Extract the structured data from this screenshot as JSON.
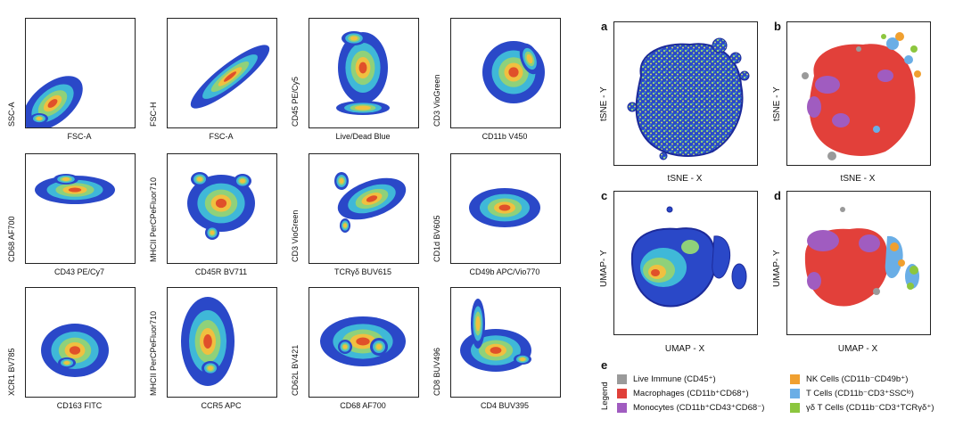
{
  "flow_panels": [
    {
      "x_label": "FSC-A",
      "y_label": "SSC-A"
    },
    {
      "x_label": "FSC-A",
      "y_label": "FSC-H"
    },
    {
      "x_label": "Live/Dead Blue",
      "y_label": "CD45 PE/Cy5"
    },
    {
      "x_label": "CD11b V450",
      "y_label": "CD3 VioGreen"
    },
    {
      "x_label": "CD43 PE/Cy7",
      "y_label": "CD68 AF700"
    },
    {
      "x_label": "CD45R BV711",
      "y_label": "MHCII PerCPeFluor710"
    },
    {
      "x_label": "TCRγδ BUV615",
      "y_label": "CD3 VioGreen"
    },
    {
      "x_label": "CD49b APC/Vio770",
      "y_label": "CD1d BV605"
    },
    {
      "x_label": "CD163 FITC",
      "y_label": "XCR1 BV785"
    },
    {
      "x_label": "CCR5 APC",
      "y_label": "MHCII PerCPeFluor710"
    },
    {
      "x_label": "CD68 AF700",
      "y_label": "CD62L BV421"
    },
    {
      "x_label": "CD4 BUV395",
      "y_label": "CD8 BUV496"
    }
  ],
  "embedding_panels": [
    {
      "letter": "a",
      "x_label": "tSNE - X",
      "y_label": "tSNE - Y"
    },
    {
      "letter": "b",
      "x_label": "tSNE - X",
      "y_label": "tSNE - Y"
    },
    {
      "letter": "c",
      "x_label": "UMAP - X",
      "y_label": "UMAP- Y"
    },
    {
      "letter": "d",
      "x_label": "UMAP - X",
      "y_label": "UMAP- Y"
    }
  ],
  "legend": {
    "letter": "e",
    "title": "Legend",
    "items": [
      {
        "label": "Live Immune (CD45⁺)",
        "color": "#9a9a9a"
      },
      {
        "label": "Macrophages (CD11b⁺CD68⁺)",
        "color": "#e0403a"
      },
      {
        "label": "Monocytes (CD11b⁺CD43⁺CD68⁻)",
        "color": "#a05cc0"
      },
      {
        "label": "NK Cells (CD11b⁻CD49b⁺)",
        "color": "#f0a030"
      },
      {
        "label": "T Cells (CD11b⁻CD3⁺SSCˡᵒ)",
        "color": "#6aaee6"
      },
      {
        "label": "γδ T Cells (CD11b⁻CD3⁺TCRγδ⁺)",
        "color": "#8cc63e"
      }
    ]
  }
}
